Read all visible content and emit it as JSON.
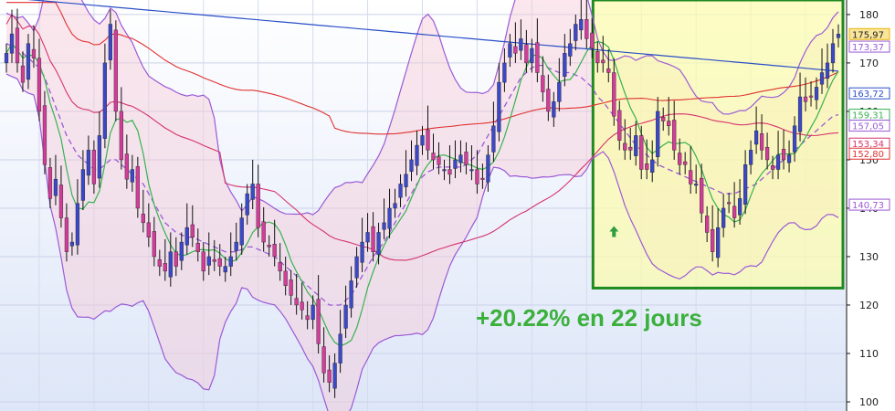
{
  "chart_data": {
    "type": "candlestick",
    "title": "",
    "xlabel": "",
    "ylabel": "",
    "ylim": [
      100,
      183
    ],
    "grid": true,
    "y_ticks": [
      "100",
      "110",
      "120",
      "130",
      "140",
      "150",
      "160",
      "170",
      "180"
    ],
    "price_badges": [
      {
        "label": "175,97",
        "value": 175.97,
        "color": "#e8b60c",
        "fill": "#f9e59a"
      },
      {
        "label": "173,37",
        "value": 173.37,
        "color": "#9b5ad6",
        "fill": "#ffffff"
      },
      {
        "label": "163,72",
        "value": 163.72,
        "color": "#2a4fc7",
        "fill": "#ffffff"
      },
      {
        "label": "159,31",
        "value": 159.31,
        "color": "#37b24d",
        "fill": "#ffffff"
      },
      {
        "label": "157,05",
        "value": 157.05,
        "color": "#9b5ad6",
        "fill": "#ffffff"
      },
      {
        "label": "153,34",
        "value": 153.34,
        "color": "#d6336c",
        "fill": "#ffffff"
      },
      {
        "label": "152,80",
        "value": 152.8,
        "color": "#e03131",
        "fill": "#ffffff"
      },
      {
        "label": "140,73",
        "value": 140.73,
        "color": "#9b5ad6",
        "fill": "#ffffff"
      }
    ],
    "annotation": "+20.22% en 22 jours",
    "highlight_range": {
      "start_bar": 108,
      "end_bar": 132,
      "y_top": 183,
      "y_bottom": 123.5
    },
    "close_prices": [
      172,
      176,
      170,
      166,
      174,
      171,
      160,
      149,
      142,
      146,
      138,
      131,
      133,
      141,
      148,
      152,
      145,
      155,
      170,
      178,
      160,
      150,
      146,
      148,
      140,
      137,
      134,
      130,
      128,
      127,
      131,
      128,
      133,
      136,
      134,
      131,
      127,
      130,
      129,
      128,
      128,
      130,
      133,
      138,
      143,
      145,
      136,
      133,
      132,
      130,
      127,
      124,
      122,
      120,
      119,
      117,
      120,
      112,
      106,
      104,
      108,
      114,
      120,
      125,
      130,
      133,
      135,
      131,
      135,
      137,
      140,
      141,
      145,
      147,
      150,
      153,
      155,
      152,
      150,
      149,
      148,
      147,
      150,
      151,
      149,
      148,
      145,
      146,
      151,
      157,
      166,
      170,
      174,
      172,
      175,
      170,
      173,
      168,
      164,
      160,
      162,
      166,
      172,
      174,
      178,
      179,
      175,
      173,
      170,
      170,
      168,
      159,
      154,
      152,
      152,
      155,
      148,
      148,
      150,
      160,
      158,
      157,
      152,
      149,
      149,
      145,
      145,
      139,
      135,
      131,
      136,
      140,
      141,
      138,
      142,
      149,
      152,
      156,
      152,
      150,
      148,
      151,
      150,
      151,
      157,
      163,
      162,
      163,
      165,
      168,
      170,
      174,
      175.97
    ],
    "sma_20": [
      174,
      173.5,
      173,
      172,
      171,
      170,
      169,
      167,
      164,
      161,
      158,
      155,
      153,
      151,
      150,
      149,
      148,
      148,
      149,
      150,
      150,
      149,
      148,
      147,
      146,
      145,
      143,
      141,
      139,
      137,
      136,
      135,
      134.5,
      134,
      134,
      133.5,
      133,
      132.5,
      132,
      131.5,
      131,
      131,
      131,
      131.5,
      132,
      132,
      131.5,
      131,
      130.5,
      130,
      129,
      128,
      127,
      126,
      125,
      124,
      123,
      122,
      121,
      120,
      120,
      120,
      121,
      122,
      124,
      126,
      128,
      130,
      131.5,
      133,
      135,
      137,
      139,
      141,
      143,
      145,
      146.5,
      147.5,
      148,
      148.5,
      148.5,
      148.5,
      148.5,
      148.5,
      149,
      150,
      151,
      153,
      155,
      157,
      159,
      161,
      163,
      165,
      167,
      168,
      169,
      169.5,
      169.5,
      169,
      168.5,
      168,
      168,
      168,
      167.5,
      167,
      166,
      165,
      163,
      162,
      160.5,
      159,
      157.5,
      156,
      154.5,
      153,
      152,
      151,
      150,
      149,
      148.5,
      148,
      147.5,
      147,
      146.5,
      146,
      145.5,
      145,
      144.5,
      144,
      143.5,
      143,
      143,
      143,
      143.5,
      144,
      144.5,
      145,
      146,
      147,
      148,
      149,
      150,
      151,
      152,
      153,
      154,
      155,
      156,
      157,
      158,
      159,
      159.31
    ]
  },
  "axis": {
    "color": "#111111"
  }
}
